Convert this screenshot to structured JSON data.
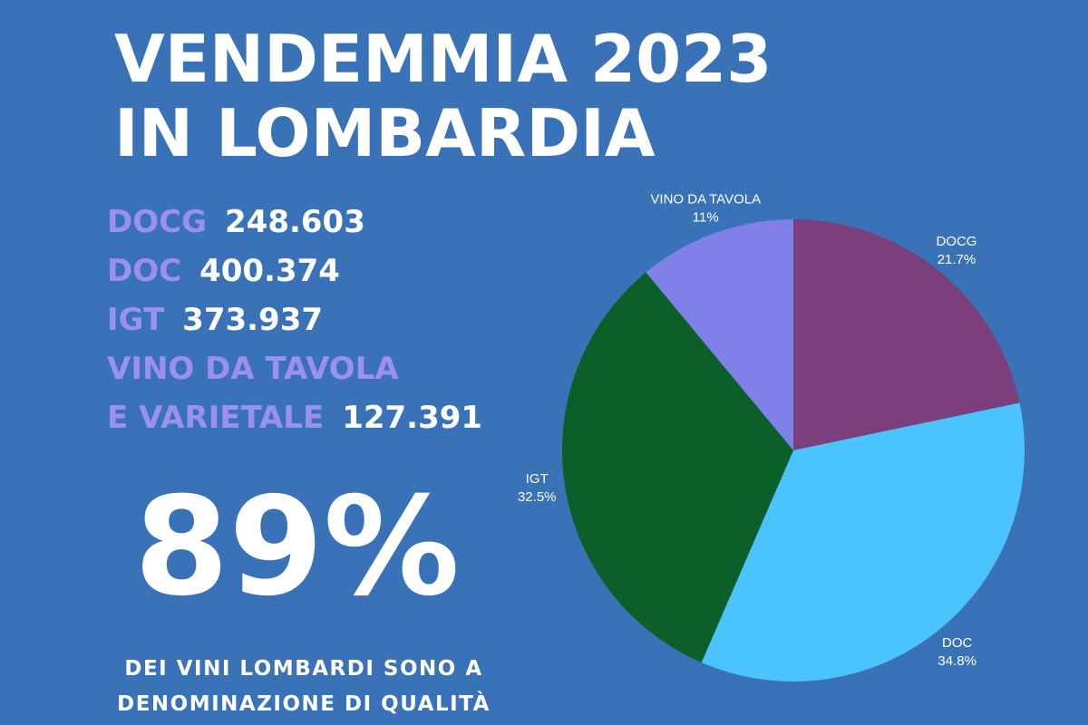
{
  "header": {
    "title": [
      "VENDEMMIA 2023",
      "IN LOMBARDIA"
    ]
  },
  "stats": [
    {
      "label": [
        "DOCG"
      ],
      "value": "248.603"
    },
    {
      "label": [
        "DOC"
      ],
      "value": "400.374"
    },
    {
      "label": [
        "IGT"
      ],
      "value": "373.937"
    },
    {
      "label": [
        "VINO DA TAVOLA",
        "E VARIETALE"
      ],
      "value": "127.391"
    }
  ],
  "highlight": {
    "value": "89%",
    "caption": [
      "DEI VINI LOMBARDI SONO A",
      "DENOMINAZIONE DI QUALITÀ"
    ]
  },
  "chart_data": {
    "type": "pie",
    "categories": [
      "DOCG",
      "DOC",
      "IGT",
      "VINO DA TAVOLA"
    ],
    "values": [
      21.7,
      34.8,
      32.5,
      11
    ],
    "value_labels": [
      "21.7%",
      "34.8%",
      "32.5%",
      "11%"
    ],
    "colors": [
      "#7a3f7c",
      "#4bc3fd",
      "#0b5f29",
      "#7f80e8"
    ]
  }
}
